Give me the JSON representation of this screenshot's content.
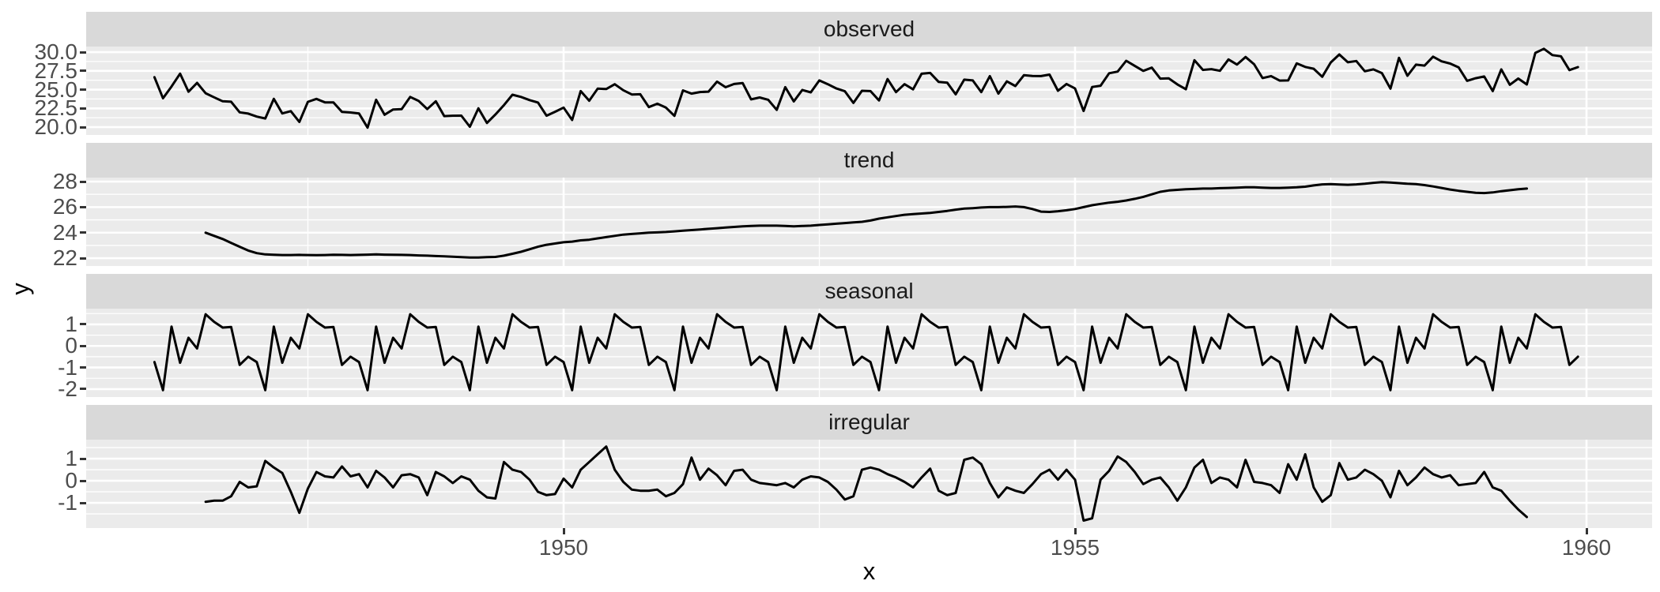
{
  "chart_data": {
    "type": "line",
    "title": "",
    "xlabel": "x",
    "ylabel": "y",
    "x_axis": {
      "start_year": 1946,
      "frequency": "monthly",
      "xlim": [
        1945.33,
        1960.64
      ],
      "major_ticks": [
        1950,
        1955,
        1960
      ],
      "tick_labels": [
        "1950",
        "1955",
        "1960"
      ],
      "minor_gridlines": [
        1947.5,
        1952.5,
        1957.5
      ]
    },
    "facets": [
      {
        "label": "observed",
        "start_month_index": 0,
        "ylim": [
          18.95,
          30.74
        ],
        "ticks": [
          {
            "v": 30,
            "t": "30.0"
          },
          {
            "v": 27.5,
            "t": "27.5"
          },
          {
            "v": 25,
            "t": "25.0"
          },
          {
            "v": 22.5,
            "t": "22.5"
          },
          {
            "v": 20,
            "t": "20.0"
          }
        ],
        "minor": [
          28.75,
          26.25,
          23.75,
          21.25
        ],
        "values": [
          26.66,
          23.84,
          25.41,
          27.13,
          24.72,
          25.9,
          24.52,
          23.97,
          23.45,
          23.38,
          21.97,
          21.8,
          21.4,
          21.15,
          23.77,
          21.82,
          22.13,
          20.69,
          23.37,
          23.76,
          23.3,
          23.3,
          22.03,
          21.95,
          21.81,
          19.93,
          23.65,
          21.65,
          22.35,
          22.39,
          24.02,
          23.49,
          22.4,
          23.45,
          21.47,
          21.52,
          21.53,
          20.05,
          22.51,
          20.55,
          21.68,
          22.93,
          24.32,
          24.02,
          23.6,
          23.28,
          21.52,
          22.05,
          22.6,
          20.95,
          24.8,
          23.52,
          25.13,
          25.08,
          25.72,
          24.92,
          24.35,
          24.38,
          22.67,
          23.12,
          22.6,
          21.5,
          24.9,
          24.47,
          24.68,
          24.73,
          26.07,
          25.32,
          25.75,
          25.88,
          23.7,
          23.95,
          23.65,
          22.3,
          25.33,
          23.42,
          24.95,
          24.63,
          26.22,
          25.72,
          25.15,
          24.78,
          23.22,
          24.85,
          24.8,
          23.55,
          26.4,
          24.67,
          25.73,
          25.03,
          27.12,
          27.22,
          26.02,
          25.93,
          24.37,
          26.33,
          26.22,
          24.67,
          26.8,
          24.47,
          26.1,
          25.48,
          26.92,
          26.82,
          26.8,
          27.0,
          24.85,
          25.75,
          25.15,
          22.15,
          25.35,
          25.52,
          27.18,
          27.4,
          28.84,
          28.17,
          27.5,
          27.93,
          26.47,
          26.5,
          25.7,
          25.05,
          28.92,
          27.62,
          27.73,
          27.51,
          29.02,
          28.34,
          29.35,
          28.38,
          26.54,
          26.8,
          26.2,
          26.22,
          28.5,
          28.02,
          27.78,
          26.71,
          28.62,
          29.69,
          28.65,
          28.81,
          27.45,
          27.7,
          27.2,
          25.13,
          29.23,
          26.85,
          28.33,
          28.2,
          29.39,
          28.77,
          28.48,
          27.96,
          26.17,
          26.52,
          26.75,
          24.8,
          27.7,
          25.64,
          26.48,
          25.69,
          29.9,
          30.45,
          29.6,
          29.45,
          27.6,
          28.0
        ]
      },
      {
        "label": "trend",
        "start_month_index": 6,
        "ylim": [
          21.39,
          28.31
        ],
        "ticks": [
          {
            "v": 28,
            "t": "28"
          },
          {
            "v": 26,
            "t": "26"
          },
          {
            "v": 24,
            "t": "24"
          },
          {
            "v": 22,
            "t": "22"
          }
        ],
        "minor": [
          27,
          25,
          23
        ],
        "values": [
          24.0,
          23.75,
          23.5,
          23.2,
          22.9,
          22.6,
          22.4,
          22.3,
          22.27,
          22.25,
          22.25,
          22.26,
          22.25,
          22.24,
          22.25,
          22.27,
          22.26,
          22.25,
          22.26,
          22.28,
          22.3,
          22.28,
          22.27,
          22.26,
          22.25,
          22.22,
          22.2,
          22.17,
          22.15,
          22.12,
          22.08,
          22.05,
          22.06,
          22.08,
          22.1,
          22.2,
          22.35,
          22.5,
          22.7,
          22.9,
          23.05,
          23.15,
          23.25,
          23.3,
          23.4,
          23.45,
          23.55,
          23.65,
          23.75,
          23.85,
          23.9,
          23.95,
          24.0,
          24.02,
          24.05,
          24.1,
          24.15,
          24.2,
          24.25,
          24.3,
          24.35,
          24.4,
          24.45,
          24.5,
          24.53,
          24.55,
          24.55,
          24.55,
          24.53,
          24.5,
          24.52,
          24.55,
          24.6,
          24.65,
          24.7,
          24.75,
          24.8,
          24.85,
          24.95,
          25.1,
          25.2,
          25.3,
          25.4,
          25.45,
          25.5,
          25.55,
          25.62,
          25.7,
          25.8,
          25.88,
          25.92,
          25.97,
          26.0,
          26.0,
          26.02,
          26.05,
          26.0,
          25.85,
          25.65,
          25.62,
          25.68,
          25.75,
          25.85,
          26.0,
          26.15,
          26.25,
          26.35,
          26.42,
          26.52,
          26.65,
          26.8,
          27.0,
          27.2,
          27.3,
          27.35,
          27.4,
          27.42,
          27.45,
          27.45,
          27.48,
          27.5,
          27.52,
          27.55,
          27.55,
          27.52,
          27.5,
          27.5,
          27.52,
          27.55,
          27.6,
          27.7,
          27.78,
          27.8,
          27.77,
          27.75,
          27.78,
          27.83,
          27.9,
          27.95,
          27.93,
          27.88,
          27.83,
          27.8,
          27.72,
          27.62,
          27.5,
          27.38,
          27.28,
          27.2,
          27.12,
          27.1,
          27.15,
          27.25,
          27.32,
          27.4,
          27.45
        ]
      },
      {
        "label": "seasonal",
        "start_month_index": 0,
        "ylim": [
          -2.37,
          1.73
        ],
        "ticks": [
          {
            "v": 1,
            "t": "1"
          },
          {
            "v": 0,
            "t": "0"
          },
          {
            "v": -1,
            "t": "-1"
          },
          {
            "v": -2,
            "t": "-2"
          }
        ],
        "minor": [
          1.5,
          0.5,
          -0.5,
          -1.5
        ],
        "pattern": [
          -0.75,
          -2.05,
          0.9,
          -0.78,
          0.38,
          -0.12,
          1.47,
          1.12,
          0.85,
          0.88,
          -0.88,
          -0.5
        ],
        "repeat": 14
      },
      {
        "label": "irregular",
        "start_month_index": 6,
        "ylim": [
          -2.14,
          1.86
        ],
        "ticks": [
          {
            "v": 1,
            "t": "1"
          },
          {
            "v": 0,
            "t": "0"
          },
          {
            "v": -1,
            "t": "-1"
          }
        ],
        "minor": [
          1.5,
          0.5,
          -0.5,
          -1.5
        ],
        "values": [
          -0.95,
          -0.9,
          -0.9,
          -0.7,
          -0.05,
          -0.3,
          -0.25,
          0.9,
          0.6,
          0.35,
          -0.5,
          -1.45,
          -0.35,
          0.4,
          0.2,
          0.15,
          0.65,
          0.2,
          0.3,
          -0.3,
          0.45,
          0.15,
          -0.3,
          0.25,
          0.3,
          0.15,
          -0.65,
          0.4,
          0.2,
          -0.1,
          0.2,
          0.05,
          -0.45,
          -0.75,
          -0.8,
          0.85,
          0.5,
          0.4,
          0.05,
          -0.5,
          -0.65,
          -0.6,
          0.1,
          -0.3,
          0.5,
          0.85,
          1.2,
          1.55,
          0.5,
          -0.05,
          -0.4,
          -0.45,
          -0.45,
          -0.4,
          -0.7,
          -0.55,
          -0.15,
          1.05,
          0.05,
          0.55,
          0.25,
          -0.2,
          0.45,
          0.5,
          0.05,
          -0.1,
          -0.15,
          -0.2,
          -0.1,
          -0.3,
          0.05,
          0.2,
          0.15,
          -0.05,
          -0.4,
          -0.85,
          -0.7,
          0.5,
          0.6,
          0.5,
          0.3,
          0.15,
          -0.05,
          -0.3,
          0.15,
          0.55,
          -0.45,
          -0.65,
          -0.55,
          0.95,
          1.05,
          0.75,
          -0.1,
          -0.75,
          -0.3,
          -0.45,
          -0.55,
          -0.15,
          0.3,
          0.5,
          0.05,
          0.5,
          0.05,
          -1.8,
          -1.7,
          0.05,
          0.45,
          1.1,
          0.85,
          0.4,
          -0.15,
          0.05,
          0.15,
          -0.3,
          -0.9,
          -0.3,
          0.6,
          0.95,
          -0.1,
          0.15,
          0.05,
          -0.3,
          0.95,
          -0.05,
          -0.1,
          -0.2,
          -0.55,
          0.75,
          0.05,
          1.2,
          -0.3,
          -0.95,
          -0.65,
          0.8,
          0.05,
          0.15,
          0.5,
          0.3,
          0.0,
          -0.75,
          0.45,
          -0.2,
          0.15,
          0.6,
          0.3,
          0.15,
          0.25,
          -0.2,
          -0.15,
          -0.1,
          0.4,
          -0.3,
          -0.45,
          -0.9,
          -1.3,
          -1.64
        ]
      }
    ],
    "style": {
      "panel_bg": "#EBEBEB",
      "strip_bg": "#D9D9D9",
      "grid_color": "#FFFFFF",
      "line_color": "#000000",
      "tick_label_color": "#4D4D4D",
      "strip_text_color": "#1A1A1A",
      "axis_title_color": "#000000",
      "tick_mark_color": "#333333"
    }
  }
}
